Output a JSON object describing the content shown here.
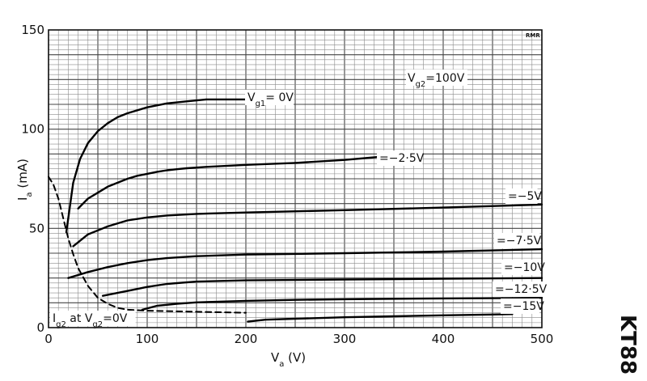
{
  "chart_data": {
    "type": "line",
    "tube": "KT88",
    "xlabel": "V",
    "xlabel_sub": "a",
    "xlabel_unit": "(V)",
    "ylabel": "I",
    "ylabel_sub": "a",
    "ylabel_unit": "(mA)",
    "xlim": [
      0,
      500
    ],
    "ylim": [
      0,
      150
    ],
    "xticks": [
      "0",
      "100",
      "200",
      "300",
      "400",
      "500"
    ],
    "yticks": [
      "0",
      "50",
      "100",
      "150"
    ],
    "grid": true,
    "condition": {
      "prefix": "V",
      "sub": "g2",
      "suffix": "=100V"
    },
    "mark": "RMR",
    "series": [
      {
        "name": "Vg1=0V",
        "label_parts": [
          {
            "t": "V"
          },
          {
            "t": "g1",
            "sub": true
          },
          {
            "t": "= 0V"
          }
        ],
        "x": [
          18,
          25,
          32,
          40,
          50,
          60,
          70,
          80,
          100,
          120,
          140,
          160,
          180,
          200
        ],
        "y": [
          48,
          73,
          85,
          93,
          99,
          103,
          106,
          108,
          111,
          113,
          114,
          115,
          115,
          115
        ]
      },
      {
        "name": "=-2·5V",
        "label_parts": [
          {
            "t": "=−2·5V"
          }
        ],
        "x": [
          30,
          40,
          50,
          60,
          70,
          80,
          90,
          100,
          110,
          120,
          130,
          140,
          160,
          200,
          250,
          300,
          335
        ],
        "y": [
          60,
          65,
          68,
          71,
          73,
          75,
          76.5,
          77.5,
          78.5,
          79.3,
          79.8,
          80.3,
          81,
          82,
          83,
          84.5,
          86
        ]
      },
      {
        "name": "=-5V",
        "label_parts": [
          {
            "t": "=−5V"
          }
        ],
        "x": [
          25,
          40,
          60,
          80,
          100,
          120,
          150,
          200,
          300,
          400,
          500
        ],
        "y": [
          41,
          47,
          51,
          54,
          55.5,
          56.5,
          57.3,
          58,
          59.2,
          60.5,
          62
        ]
      },
      {
        "name": "=-7·5V",
        "label_parts": [
          {
            "t": "=−7·5V"
          }
        ],
        "x": [
          20,
          40,
          60,
          80,
          100,
          120,
          150,
          200,
          300,
          400,
          500
        ],
        "y": [
          25,
          28,
          30.5,
          32.5,
          34,
          35,
          36,
          36.8,
          37.5,
          38.3,
          39.5
        ]
      },
      {
        "name": "=-10V",
        "label_parts": [
          {
            "t": "=−10V"
          }
        ],
        "x": [
          55,
          70,
          85,
          100,
          120,
          150,
          200,
          300,
          400,
          500
        ],
        "y": [
          16,
          17.5,
          19,
          20.5,
          22,
          23.2,
          23.8,
          24.2,
          24.6,
          25
        ]
      },
      {
        "name": "=-12·5V",
        "label_parts": [
          {
            "t": "=−12·5V"
          }
        ],
        "x": [
          95,
          110,
          130,
          150,
          200,
          250,
          300,
          400,
          500
        ],
        "y": [
          9,
          11,
          12,
          12.7,
          13.5,
          14,
          14.3,
          14.7,
          15
        ]
      },
      {
        "name": "=-15V",
        "label_parts": [
          {
            "t": "=−15V"
          }
        ],
        "x": [
          202,
          220,
          250,
          300,
          350,
          400,
          450,
          470
        ],
        "y": [
          3,
          4,
          4.5,
          5.2,
          5.7,
          6.2,
          6.6,
          6.8
        ]
      },
      {
        "name": "Ig2 at Vg2=0V",
        "dashed": true,
        "label_parts": [
          {
            "t": "I"
          },
          {
            "t": "g2",
            "sub": true
          },
          {
            "t": " at V"
          },
          {
            "t": "g2",
            "sub": true
          },
          {
            "t": "=0V"
          }
        ],
        "x": [
          0,
          5,
          10,
          15,
          20,
          25,
          30,
          40,
          50,
          60,
          70,
          80,
          100,
          150,
          200
        ],
        "y": [
          76,
          72,
          65,
          55,
          45,
          37,
          30,
          21,
          15,
          12,
          10,
          9,
          8.5,
          8,
          7.5
        ]
      }
    ]
  }
}
